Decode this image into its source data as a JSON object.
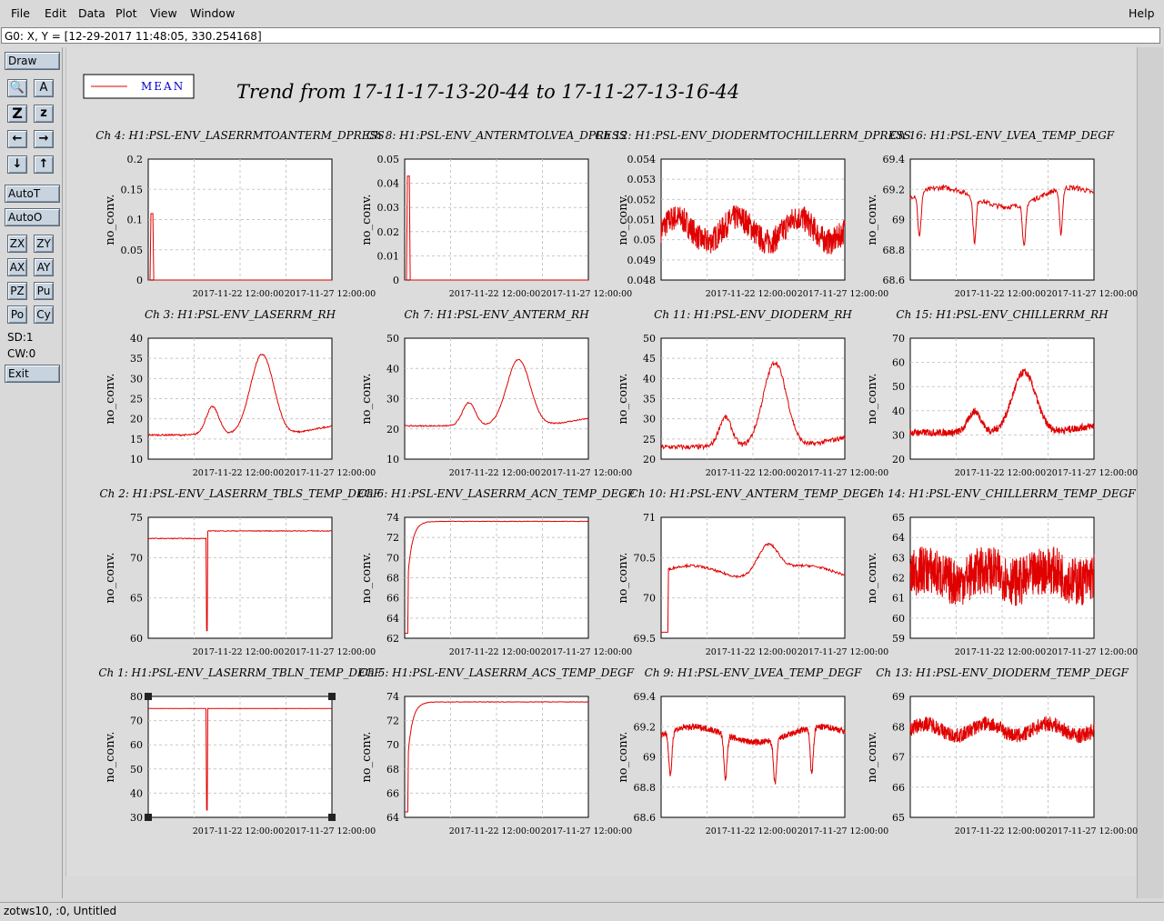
{
  "menu": {
    "file": "File",
    "edit": "Edit",
    "data": "Data",
    "plot": "Plot",
    "view": "View",
    "window": "Window",
    "help": "Help"
  },
  "readout": "G0: X, Y = [12-29-2017 11:48:05, 330.254168]",
  "toolbar": {
    "draw": "Draw",
    "autot": "AutoT",
    "autoo": "AutoO",
    "zx": "ZX",
    "zy": "ZY",
    "ax": "AX",
    "ay": "AY",
    "pz": "PZ",
    "pu": "Pu",
    "po": "Po",
    "cy": "Cy",
    "sd": "SD:1",
    "cw": "CW:0",
    "exit": "Exit"
  },
  "status": "zotws10, :0, Untitled",
  "legend": {
    "label": "MEAN",
    "color": "#e00000"
  },
  "title": "Trend from 17-11-17-13-20-44 to 17-11-27-13-16-44",
  "chart_data": [
    {
      "type": "line",
      "title": "Ch 4: H1:PSL-ENV_LASERRMTOANTERM_DPRESS",
      "ylabel": "no_conv.",
      "ylim": [
        0,
        0.2
      ],
      "yticks": [
        "0.2",
        "0.15",
        "0.1",
        "0.05",
        "0"
      ],
      "xticks": [
        "2017-11-22 12:00:00",
        "2017-11-27 12:00:00"
      ],
      "shape": "spike",
      "base": 0,
      "peak": 0.11,
      "noise": 0
    },
    {
      "type": "line",
      "title": "Ch 8: H1:PSL-ENV_ANTERMTOLVEA_DPRESS",
      "ylabel": "no_conv.",
      "ylim": [
        0,
        0.05
      ],
      "yticks": [
        "0.05",
        "0.04",
        "0.03",
        "0.02",
        "0.01",
        "0"
      ],
      "xticks": [
        "2017-11-22 12:00:00",
        "2017-11-27 12:00:00"
      ],
      "shape": "spike",
      "base": 0,
      "peak": 0.043,
      "noise": 0
    },
    {
      "type": "line",
      "title": "Ch 12: H1:PSL-ENV_DIODERMTOCHILLERRM_DPRESS",
      "ylabel": "no_conv.",
      "ylim": [
        0.048,
        0.054
      ],
      "yticks": [
        "0.054",
        "0.053",
        "0.052",
        "0.051",
        "0.05",
        "0.049",
        "0.048"
      ],
      "xticks": [
        "2017-11-22 12:00:00",
        "2017-11-27 12:00:00"
      ],
      "shape": "band",
      "base": 0.0505,
      "amp": 0.0006,
      "noise": 0.0013
    },
    {
      "type": "line",
      "title": "Ch 16: H1:PSL-ENV_LVEA_TEMP_DEGF",
      "ylabel": "no_conv.",
      "ylim": [
        68.5,
        69.45
      ],
      "yticks": [
        "69.4",
        "69.2",
        "69",
        "68.8",
        "68.6"
      ],
      "xticks": [
        "2017-11-22 12:00:00",
        "2017-11-27 12:00:00"
      ],
      "shape": "dips",
      "base": 69.15,
      "amp": 0.15,
      "noise": 0.04
    },
    {
      "type": "line",
      "title": "Ch 3: H1:PSL-ENV_LASERRM_RH",
      "ylabel": "no_conv.",
      "ylim": [
        10,
        40
      ],
      "yticks": [
        "40",
        "35",
        "30",
        "25",
        "20",
        "15",
        "10"
      ],
      "xticks": [
        "2017-11-22 12:00:00",
        "2017-11-27 12:00:00"
      ],
      "shape": "hump",
      "base": 16,
      "peak": 36,
      "noise": 0.4
    },
    {
      "type": "line",
      "title": "Ch 7: H1:PSL-ENV_ANTERM_RH",
      "ylabel": "no_conv.",
      "ylim": [
        10,
        50
      ],
      "yticks": [
        "50",
        "40",
        "30",
        "20",
        "10"
      ],
      "xticks": [
        "2017-11-22 12:00:00",
        "2017-11-27 12:00:00"
      ],
      "shape": "hump",
      "base": 21,
      "peak": 43,
      "noise": 0.4
    },
    {
      "type": "line",
      "title": "Ch 11: H1:PSL-ENV_DIODERM_RH",
      "ylabel": "no_conv.",
      "ylim": [
        20,
        50
      ],
      "yticks": [
        "50",
        "45",
        "40",
        "35",
        "30",
        "25",
        "20"
      ],
      "xticks": [
        "2017-11-22 12:00:00",
        "2017-11-27 12:00:00"
      ],
      "shape": "hump",
      "base": 23,
      "peak": 44,
      "noise": 1.2
    },
    {
      "type": "line",
      "title": "Ch 15: H1:PSL-ENV_CHILLERRM_RH",
      "ylabel": "no_conv.",
      "ylim": [
        20,
        70
      ],
      "yticks": [
        "70",
        "60",
        "50",
        "40",
        "30",
        "20"
      ],
      "xticks": [
        "2017-11-22 12:00:00",
        "2017-11-27 12:00:00"
      ],
      "shape": "hump",
      "base": 31,
      "peak": 56,
      "noise": 3
    },
    {
      "type": "line",
      "title": "Ch 2: H1:PSL-ENV_LASERRM_TBLS_TEMP_DEGF",
      "ylabel": "no_conv.",
      "ylim": [
        60,
        76
      ],
      "yticks": [
        "75",
        "70",
        "65",
        "60"
      ],
      "xticks": [
        "2017-11-22 12:00:00",
        "2017-11-27 12:00:00"
      ],
      "shape": "step",
      "base": 73.2,
      "peak": 74.2,
      "dip": 61,
      "noise": 0.1
    },
    {
      "type": "line",
      "title": "Ch 6: H1:PSL-ENV_LASERRM_ACN_TEMP_DEGF",
      "ylabel": "no_conv.",
      "ylim": [
        62,
        74
      ],
      "yticks": [
        "74",
        "72",
        "70",
        "68",
        "66",
        "64",
        "62"
      ],
      "xticks": [
        "2017-11-22 12:00:00",
        "2017-11-27 12:00:00"
      ],
      "shape": "recover",
      "base": 73.6,
      "dip": 62.5,
      "noise": 0.05
    },
    {
      "type": "line",
      "title": "Ch 10: H1:PSL-ENV_ANTERM_TEMP_DEGF",
      "ylabel": "no_conv.",
      "ylim": [
        69.3,
        71.3
      ],
      "yticks": [
        "71",
        "70.5",
        "70",
        "69.5"
      ],
      "xticks": [
        "2017-11-22 12:00:00",
        "2017-11-27 12:00:00"
      ],
      "shape": "wave",
      "base": 70.6,
      "amp": 0.3,
      "noise": 0.04
    },
    {
      "type": "line",
      "title": "Ch 14: H1:PSL-ENV_CHILLERRM_TEMP_DEGF",
      "ylabel": "no_conv.",
      "ylim": [
        59,
        65
      ],
      "yticks": [
        "65",
        "64",
        "63",
        "62",
        "61",
        "60",
        "59"
      ],
      "xticks": [
        "2017-11-22 12:00:00",
        "2017-11-27 12:00:00"
      ],
      "shape": "band",
      "base": 62.1,
      "amp": 0.3,
      "noise": 2.4
    },
    {
      "type": "line",
      "title": "Ch 1: H1:PSL-ENV_LASERRM_TBLN_TEMP_DEGF",
      "ylabel": "no_conv.",
      "ylim": [
        30,
        80
      ],
      "yticks": [
        "80",
        "70",
        "60",
        "50",
        "40",
        "30"
      ],
      "xticks": [
        "2017-11-22 12:00:00",
        "2017-11-27 12:00:00"
      ],
      "shape": "flatdip",
      "base": 75,
      "dip": 33,
      "noise": 0.1
    },
    {
      "type": "line",
      "title": "Ch 5: H1:PSL-ENV_LASERRM_ACS_TEMP_DEGF",
      "ylabel": "no_conv.",
      "ylim": [
        63,
        74
      ],
      "yticks": [
        "74",
        "72",
        "70",
        "68",
        "66",
        "64"
      ],
      "xticks": [
        "2017-11-22 12:00:00",
        "2017-11-27 12:00:00"
      ],
      "shape": "recover",
      "base": 73.5,
      "dip": 63.5,
      "noise": 0.05
    },
    {
      "type": "line",
      "title": "Ch 9: H1:PSL-ENV_LVEA_TEMP_DEGF",
      "ylabel": "no_conv.",
      "ylim": [
        68.5,
        69.45
      ],
      "yticks": [
        "69.4",
        "69.2",
        "69",
        "68.8",
        "68.6"
      ],
      "xticks": [
        "2017-11-22 12:00:00",
        "2017-11-27 12:00:00"
      ],
      "shape": "dips",
      "base": 69.15,
      "amp": 0.12,
      "noise": 0.05
    },
    {
      "type": "line",
      "title": "Ch 13: H1:PSL-ENV_DIODERM_TEMP_DEGF",
      "ylabel": "no_conv.",
      "ylim": [
        65,
        69
      ],
      "yticks": [
        "69",
        "68",
        "67",
        "66",
        "65"
      ],
      "xticks": [
        "2017-11-22 12:00:00",
        "2017-11-27 12:00:00"
      ],
      "shape": "band",
      "base": 67.9,
      "amp": 0.2,
      "noise": 0.5
    }
  ]
}
